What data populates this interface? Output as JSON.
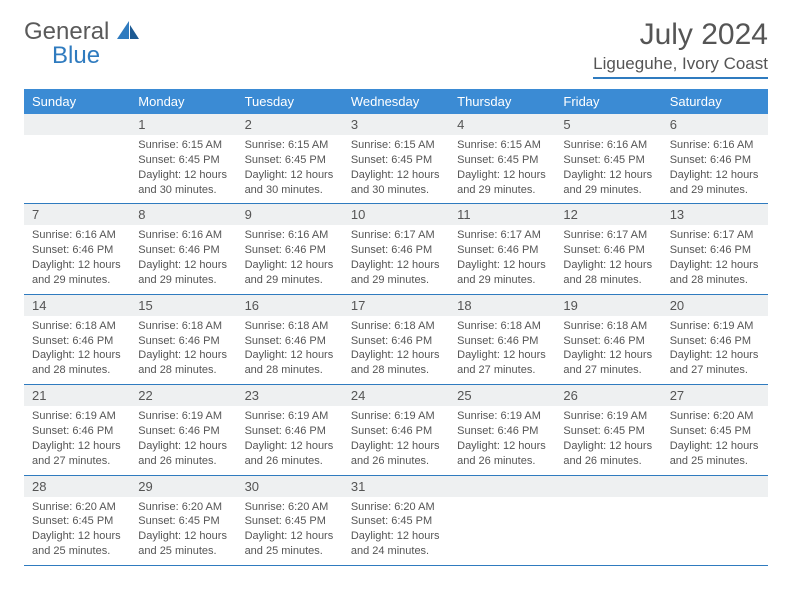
{
  "brand": {
    "word1": "General",
    "word2": "Blue"
  },
  "title": "July 2024",
  "location": "Ligueguhe, Ivory Coast",
  "day_headers": [
    "Sunday",
    "Monday",
    "Tuesday",
    "Wednesday",
    "Thursday",
    "Friday",
    "Saturday"
  ],
  "colors": {
    "header_bg": "#3b8bd4",
    "header_text": "#ffffff",
    "accent_line": "#2f7bbf",
    "daynum_bg": "#eef0f1",
    "text": "#555555",
    "brand_blue": "#2f7bbf"
  },
  "weeks": [
    [
      {
        "num": "",
        "sunrise": "",
        "sunset": "",
        "daylight": ""
      },
      {
        "num": "1",
        "sunrise": "Sunrise: 6:15 AM",
        "sunset": "Sunset: 6:45 PM",
        "daylight": "Daylight: 12 hours and 30 minutes."
      },
      {
        "num": "2",
        "sunrise": "Sunrise: 6:15 AM",
        "sunset": "Sunset: 6:45 PM",
        "daylight": "Daylight: 12 hours and 30 minutes."
      },
      {
        "num": "3",
        "sunrise": "Sunrise: 6:15 AM",
        "sunset": "Sunset: 6:45 PM",
        "daylight": "Daylight: 12 hours and 30 minutes."
      },
      {
        "num": "4",
        "sunrise": "Sunrise: 6:15 AM",
        "sunset": "Sunset: 6:45 PM",
        "daylight": "Daylight: 12 hours and 29 minutes."
      },
      {
        "num": "5",
        "sunrise": "Sunrise: 6:16 AM",
        "sunset": "Sunset: 6:45 PM",
        "daylight": "Daylight: 12 hours and 29 minutes."
      },
      {
        "num": "6",
        "sunrise": "Sunrise: 6:16 AM",
        "sunset": "Sunset: 6:46 PM",
        "daylight": "Daylight: 12 hours and 29 minutes."
      }
    ],
    [
      {
        "num": "7",
        "sunrise": "Sunrise: 6:16 AM",
        "sunset": "Sunset: 6:46 PM",
        "daylight": "Daylight: 12 hours and 29 minutes."
      },
      {
        "num": "8",
        "sunrise": "Sunrise: 6:16 AM",
        "sunset": "Sunset: 6:46 PM",
        "daylight": "Daylight: 12 hours and 29 minutes."
      },
      {
        "num": "9",
        "sunrise": "Sunrise: 6:16 AM",
        "sunset": "Sunset: 6:46 PM",
        "daylight": "Daylight: 12 hours and 29 minutes."
      },
      {
        "num": "10",
        "sunrise": "Sunrise: 6:17 AM",
        "sunset": "Sunset: 6:46 PM",
        "daylight": "Daylight: 12 hours and 29 minutes."
      },
      {
        "num": "11",
        "sunrise": "Sunrise: 6:17 AM",
        "sunset": "Sunset: 6:46 PM",
        "daylight": "Daylight: 12 hours and 29 minutes."
      },
      {
        "num": "12",
        "sunrise": "Sunrise: 6:17 AM",
        "sunset": "Sunset: 6:46 PM",
        "daylight": "Daylight: 12 hours and 28 minutes."
      },
      {
        "num": "13",
        "sunrise": "Sunrise: 6:17 AM",
        "sunset": "Sunset: 6:46 PM",
        "daylight": "Daylight: 12 hours and 28 minutes."
      }
    ],
    [
      {
        "num": "14",
        "sunrise": "Sunrise: 6:18 AM",
        "sunset": "Sunset: 6:46 PM",
        "daylight": "Daylight: 12 hours and 28 minutes."
      },
      {
        "num": "15",
        "sunrise": "Sunrise: 6:18 AM",
        "sunset": "Sunset: 6:46 PM",
        "daylight": "Daylight: 12 hours and 28 minutes."
      },
      {
        "num": "16",
        "sunrise": "Sunrise: 6:18 AM",
        "sunset": "Sunset: 6:46 PM",
        "daylight": "Daylight: 12 hours and 28 minutes."
      },
      {
        "num": "17",
        "sunrise": "Sunrise: 6:18 AM",
        "sunset": "Sunset: 6:46 PM",
        "daylight": "Daylight: 12 hours and 28 minutes."
      },
      {
        "num": "18",
        "sunrise": "Sunrise: 6:18 AM",
        "sunset": "Sunset: 6:46 PM",
        "daylight": "Daylight: 12 hours and 27 minutes."
      },
      {
        "num": "19",
        "sunrise": "Sunrise: 6:18 AM",
        "sunset": "Sunset: 6:46 PM",
        "daylight": "Daylight: 12 hours and 27 minutes."
      },
      {
        "num": "20",
        "sunrise": "Sunrise: 6:19 AM",
        "sunset": "Sunset: 6:46 PM",
        "daylight": "Daylight: 12 hours and 27 minutes."
      }
    ],
    [
      {
        "num": "21",
        "sunrise": "Sunrise: 6:19 AM",
        "sunset": "Sunset: 6:46 PM",
        "daylight": "Daylight: 12 hours and 27 minutes."
      },
      {
        "num": "22",
        "sunrise": "Sunrise: 6:19 AM",
        "sunset": "Sunset: 6:46 PM",
        "daylight": "Daylight: 12 hours and 26 minutes."
      },
      {
        "num": "23",
        "sunrise": "Sunrise: 6:19 AM",
        "sunset": "Sunset: 6:46 PM",
        "daylight": "Daylight: 12 hours and 26 minutes."
      },
      {
        "num": "24",
        "sunrise": "Sunrise: 6:19 AM",
        "sunset": "Sunset: 6:46 PM",
        "daylight": "Daylight: 12 hours and 26 minutes."
      },
      {
        "num": "25",
        "sunrise": "Sunrise: 6:19 AM",
        "sunset": "Sunset: 6:46 PM",
        "daylight": "Daylight: 12 hours and 26 minutes."
      },
      {
        "num": "26",
        "sunrise": "Sunrise: 6:19 AM",
        "sunset": "Sunset: 6:45 PM",
        "daylight": "Daylight: 12 hours and 26 minutes."
      },
      {
        "num": "27",
        "sunrise": "Sunrise: 6:20 AM",
        "sunset": "Sunset: 6:45 PM",
        "daylight": "Daylight: 12 hours and 25 minutes."
      }
    ],
    [
      {
        "num": "28",
        "sunrise": "Sunrise: 6:20 AM",
        "sunset": "Sunset: 6:45 PM",
        "daylight": "Daylight: 12 hours and 25 minutes."
      },
      {
        "num": "29",
        "sunrise": "Sunrise: 6:20 AM",
        "sunset": "Sunset: 6:45 PM",
        "daylight": "Daylight: 12 hours and 25 minutes."
      },
      {
        "num": "30",
        "sunrise": "Sunrise: 6:20 AM",
        "sunset": "Sunset: 6:45 PM",
        "daylight": "Daylight: 12 hours and 25 minutes."
      },
      {
        "num": "31",
        "sunrise": "Sunrise: 6:20 AM",
        "sunset": "Sunset: 6:45 PM",
        "daylight": "Daylight: 12 hours and 24 minutes."
      },
      {
        "num": "",
        "sunrise": "",
        "sunset": "",
        "daylight": ""
      },
      {
        "num": "",
        "sunrise": "",
        "sunset": "",
        "daylight": ""
      },
      {
        "num": "",
        "sunrise": "",
        "sunset": "",
        "daylight": ""
      }
    ]
  ]
}
